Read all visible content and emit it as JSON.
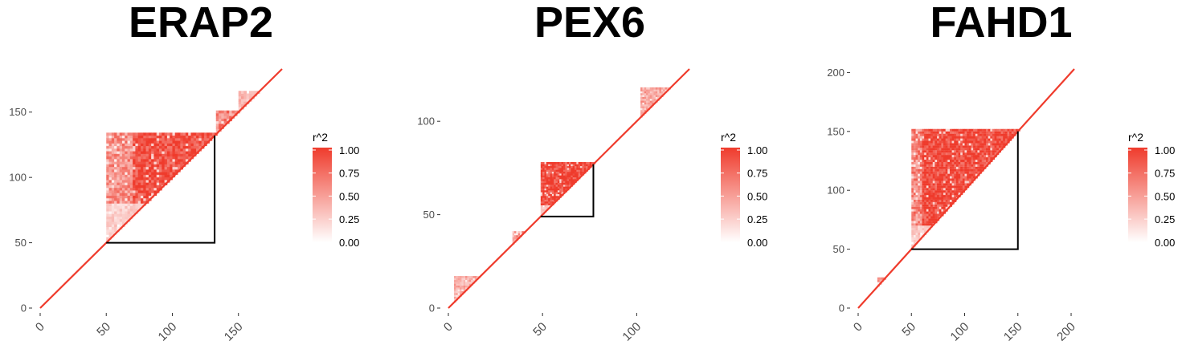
{
  "colors": {
    "low": "#ffffff",
    "high": "#ef3b2c",
    "box": "#000000",
    "axis": "#333333"
  },
  "chart_data": [
    {
      "type": "heatmap",
      "title": "ERAP2",
      "legend_title": "r^2",
      "legend_ticks": [
        "1.00",
        "0.75",
        "0.50",
        "0.25",
        "0.00"
      ],
      "xlim": [
        0,
        183
      ],
      "ylim": [
        0,
        183
      ],
      "x_ticks": [
        0,
        50,
        100,
        150
      ],
      "y_ticks": [
        0,
        50,
        100,
        150
      ],
      "box": [
        50,
        132
      ],
      "blocks": [
        {
          "from": 50,
          "to": 132,
          "high_from": 80,
          "level": 0.55
        },
        {
          "from": 133,
          "to": 150,
          "level": 0.6
        },
        {
          "from": 150,
          "to": 165,
          "level": 0.35
        }
      ]
    },
    {
      "type": "heatmap",
      "title": "PEX6",
      "legend_title": "r^2",
      "legend_ticks": [
        "1.00",
        "0.75",
        "0.50",
        "0.25",
        "0.00"
      ],
      "xlim": [
        0,
        128
      ],
      "ylim": [
        0,
        128
      ],
      "x_ticks": [
        0,
        50,
        100
      ],
      "y_ticks": [
        0,
        50,
        100
      ],
      "box": [
        49,
        77
      ],
      "blocks": [
        {
          "from": 49,
          "to": 77,
          "high_from": 55,
          "level": 0.6
        },
        {
          "from": 3,
          "to": 16,
          "level": 0.4
        },
        {
          "from": 34,
          "to": 40,
          "level": 0.5
        },
        {
          "from": 102,
          "to": 117,
          "level": 0.45
        }
      ]
    },
    {
      "type": "heatmap",
      "title": "FAHD1",
      "legend_title": "r^2",
      "legend_ticks": [
        "1.00",
        "0.75",
        "0.50",
        "0.25",
        "0.00"
      ],
      "xlim": [
        0,
        203
      ],
      "ylim": [
        0,
        203
      ],
      "x_ticks": [
        0,
        50,
        100,
        150,
        200
      ],
      "y_ticks": [
        0,
        50,
        100,
        150,
        200
      ],
      "box": [
        50,
        150
      ],
      "blocks": [
        {
          "from": 50,
          "to": 150,
          "high_from": 70,
          "level": 0.6
        },
        {
          "from": 18,
          "to": 25,
          "level": 0.5
        }
      ]
    }
  ]
}
